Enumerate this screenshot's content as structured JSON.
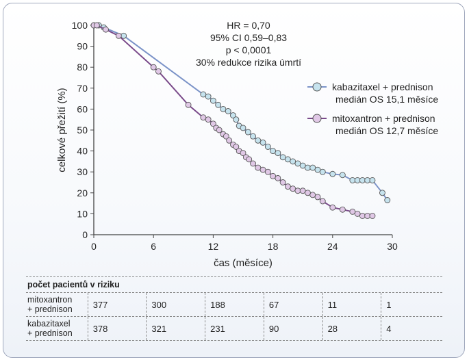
{
  "chart_data": {
    "type": "line",
    "xlabel": "čas (měsíce)",
    "ylabel": "celkové přežití (%)",
    "xlim": [
      0,
      30
    ],
    "ylim": [
      0,
      100
    ],
    "xticks": [
      0,
      6,
      12,
      18,
      24,
      30
    ],
    "yticks": [
      0,
      10,
      20,
      30,
      40,
      50,
      60,
      70,
      80,
      90,
      100
    ],
    "annotations": [
      "HR = 0,70",
      "95% CI 0,59–0,83",
      "p < 0,0001",
      "30% redukce rizika úmrtí"
    ],
    "legend_position": "right",
    "series": [
      {
        "name": "kabazitaxel + prednison",
        "sublabel": "medián OS 15,1 měsíce",
        "color": "#7b93c8",
        "marker_fill": "#c6e3ee",
        "x": [
          0,
          0.5,
          1,
          3,
          11,
          11.5,
          12,
          12.5,
          13,
          13.5,
          14,
          14.3,
          14.6,
          15,
          15.5,
          16,
          16.5,
          17,
          17.5,
          18,
          18.5,
          19,
          19.5,
          20,
          20.5,
          21,
          21.5,
          22,
          22.5,
          23,
          24,
          25,
          26,
          26.5,
          27,
          27.5,
          28,
          29,
          29.5
        ],
        "y": [
          100,
          100,
          99,
          95,
          67,
          66,
          64,
          62,
          60,
          59,
          57,
          55,
          52,
          51,
          49,
          47,
          45,
          44,
          42,
          40,
          39,
          37,
          36,
          35,
          34,
          33,
          32,
          32,
          31,
          30,
          29,
          28.5,
          26,
          26,
          26,
          26,
          26,
          20,
          16.5
        ]
      },
      {
        "name": "mitoxantron + prednison",
        "sublabel": "medián OS 12,7 měsíce",
        "color": "#7a4a8a",
        "marker_fill": "#e0c8e6",
        "x": [
          0,
          0.3,
          1.2,
          2.5,
          6,
          6.5,
          9.5,
          11,
          11.5,
          12,
          12.3,
          12.6,
          13,
          13.3,
          13.6,
          14,
          14.3,
          14.6,
          15,
          15.3,
          15.6,
          16,
          16.5,
          17,
          17.5,
          18,
          18.5,
          19,
          19.5,
          20,
          20.5,
          21,
          21.5,
          22,
          22.5,
          23,
          24,
          25,
          26,
          26.5,
          27,
          27.5,
          28
        ],
        "y": [
          100,
          100,
          98,
          95,
          80,
          78,
          62,
          56,
          55,
          53,
          51,
          50,
          48,
          47,
          45,
          43,
          42,
          40,
          39,
          37,
          36,
          34,
          32,
          31,
          30,
          28,
          27,
          25,
          23,
          22,
          21,
          21,
          20,
          19,
          18,
          16,
          13,
          12,
          11,
          10,
          9,
          9,
          9
        ]
      }
    ]
  },
  "risk_table": {
    "title": "počet pacientů v riziku",
    "rows": [
      {
        "label_line1": "mitoxantron",
        "label_line2": "+ prednison",
        "values": [
          "377",
          "300",
          "188",
          "67",
          "11",
          "1"
        ]
      },
      {
        "label_line1": "kabazitaxel",
        "label_line2": "+ prednison",
        "values": [
          "378",
          "321",
          "231",
          "90",
          "28",
          "4"
        ]
      }
    ]
  }
}
